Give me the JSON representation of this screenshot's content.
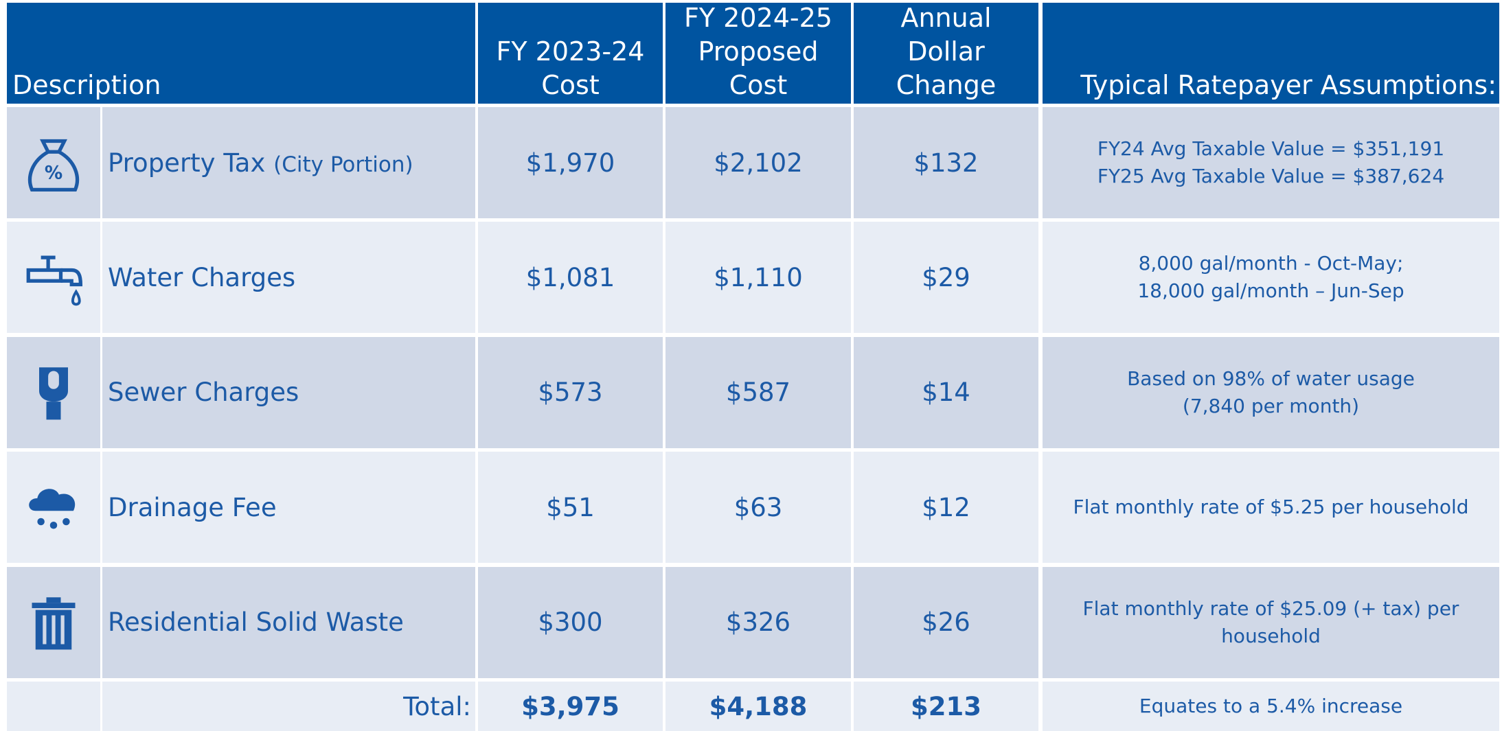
{
  "table": {
    "header": [
      [
        "Description"
      ],
      [
        "FY 2023-24",
        "Cost"
      ],
      [
        "FY 2024-25",
        "Proposed",
        "Cost"
      ],
      [
        "Annual",
        "Dollar",
        "Change"
      ],
      [
        "Typical Ratepayer Assumptions:"
      ]
    ],
    "rows": [
      {
        "description": "Property Tax",
        "note": "(City Portion)",
        "fy24": "$1,970",
        "fy25": "$2,102",
        "change": "$132",
        "assumptions": [
          "FY24 Avg Taxable Value = $351,191",
          "FY25 Avg Taxable Value = $387,624"
        ]
      },
      {
        "description": "Water Charges",
        "fy24": "$1,081",
        "fy25": "$1,110",
        "change": "$29",
        "assumptions": [
          "8,000 gal/month - Oct-May;",
          "18,000 gal/month – Jun-Sep"
        ]
      },
      {
        "description": "Sewer Charges",
        "fy24": "$573",
        "fy25": "$587",
        "change": "$14",
        "assumptions": [
          "Based on 98% of water usage",
          "(7,840 per month)"
        ]
      },
      {
        "description": "Drainage Fee",
        "fy24": "$51",
        "fy25": "$63",
        "change": "$12",
        "assumptions": [
          "Flat monthly rate of $5.25 per household"
        ]
      },
      {
        "description": "Residential Solid Waste",
        "fy24": "$300",
        "fy25": "$326",
        "change": "$26",
        "assumptions": [
          "Flat monthly rate of $25.09 (+ tax) per",
          "household"
        ]
      }
    ],
    "total": {
      "label": "Total:",
      "fy24": "$3,975",
      "fy25": "$4,188",
      "change": "$213",
      "assumptions": "Equates to a 5.4% increase"
    }
  }
}
